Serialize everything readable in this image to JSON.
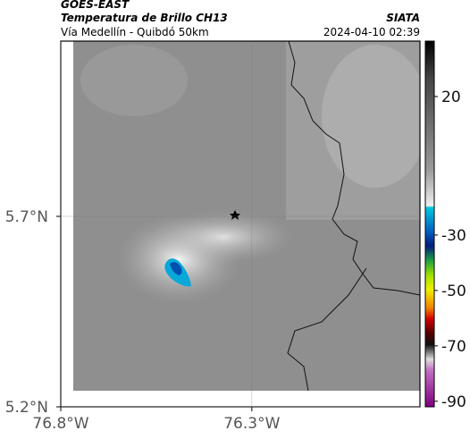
{
  "header": {
    "product": "GOES-EAST",
    "title": "Temperatura de Brillo CH13",
    "subtitle": "Vía Medellín - Quibdó 50km",
    "source": "SIATA",
    "datetime": "2024-04-10 02:39"
  },
  "map": {
    "xlim": [
      -76.8,
      -75.86
    ],
    "ylim": [
      5.2,
      6.16
    ],
    "xticks": [
      {
        "value": -76.8,
        "label": "76.8°W"
      },
      {
        "value": -76.3,
        "label": "76.3°W"
      }
    ],
    "yticks": [
      {
        "value": 5.2,
        "label": "5.2°N"
      },
      {
        "value": 5.7,
        "label": "5.7°N"
      }
    ],
    "grid": true
  },
  "colorbar": {
    "lim": [
      -92,
      40
    ],
    "ticks": [
      20,
      -30,
      -50,
      -70,
      -90
    ]
  }
}
